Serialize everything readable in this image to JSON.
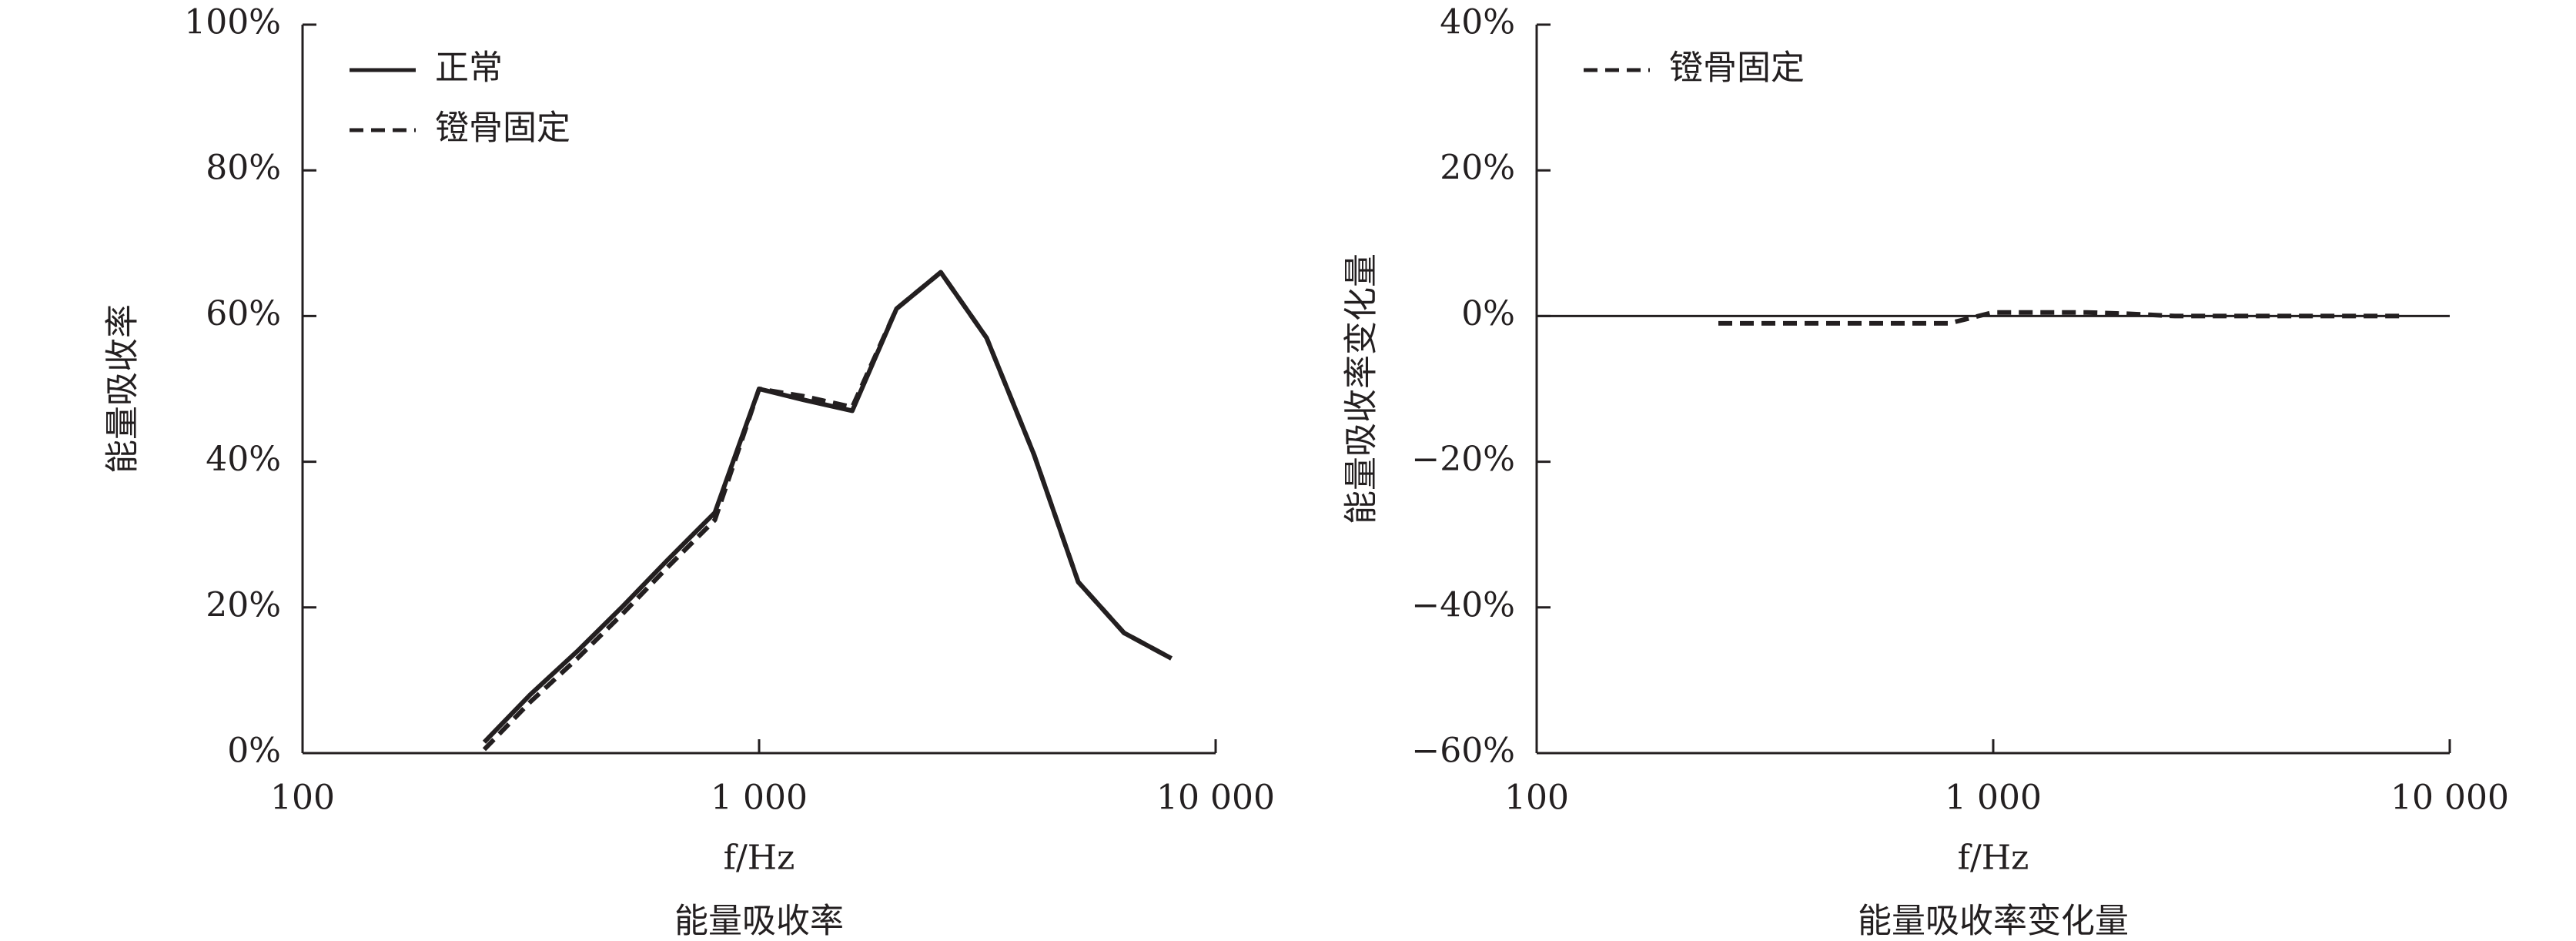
{
  "chart_data": [
    {
      "type": "line",
      "title": "能量吸收率",
      "xlabel": "f/Hz",
      "ylabel": "能量吸收率",
      "xscale": "log",
      "legend": "upper left",
      "x": [
        250,
        315,
        400,
        500,
        630,
        800,
        1000,
        1250,
        1600,
        2000,
        2500,
        3150,
        4000,
        5000,
        6300,
        8000
      ],
      "xlim": [
        100,
        10000
      ],
      "xticks": [
        100,
        {
          "value": 1000,
          "label": "1 000"
        },
        {
          "value": 10000,
          "label": "10 000"
        }
      ],
      "ylim": [
        0,
        100
      ],
      "yticks": [
        {
          "value": 0,
          "label": "0%"
        },
        {
          "value": 20,
          "label": "20%"
        },
        {
          "value": 40,
          "label": "40%"
        },
        {
          "value": 60,
          "label": "60%"
        },
        {
          "value": 80,
          "label": "80%"
        },
        {
          "value": 100,
          "label": "100%"
        }
      ],
      "series": [
        {
          "name": "正常",
          "color": "#231f20",
          "linestyle": "solid",
          "values": [
            1.5,
            8,
            14,
            20,
            26.5,
            33,
            50,
            48.5,
            47,
            61,
            66,
            57,
            41,
            23.5,
            16.5,
            13
          ]
        },
        {
          "name": "镫骨固定",
          "color": "#231f20",
          "linestyle": "dashed",
          "values": [
            0.5,
            7,
            13,
            19,
            25.5,
            32,
            50,
            49,
            47.5,
            61,
            66,
            57,
            41,
            23.5,
            16.5,
            13
          ]
        }
      ]
    },
    {
      "type": "line",
      "title": "能量吸收率变化量",
      "xlabel": "f/Hz",
      "ylabel": "能量吸收率变化量",
      "xscale": "log",
      "legend": "upper left",
      "zero_line": true,
      "x": [
        250,
        315,
        400,
        500,
        630,
        800,
        1000,
        1250,
        1600,
        2000,
        2500,
        3150,
        4000,
        5000,
        6300,
        8000
      ],
      "xlim": [
        100,
        10000
      ],
      "xticks": [
        100,
        {
          "value": 1000,
          "label": "1 000"
        },
        {
          "value": 10000,
          "label": "10 000"
        }
      ],
      "ylim": [
        -60,
        40
      ],
      "yticks": [
        {
          "value": -60,
          "label": "−60%"
        },
        {
          "value": -40,
          "label": "−40%"
        },
        {
          "value": -20,
          "label": "−20%"
        },
        {
          "value": 0,
          "label": "0%"
        },
        {
          "value": 20,
          "label": "20%"
        },
        {
          "value": 40,
          "label": "40%"
        }
      ],
      "series": [
        {
          "name": "镫骨固定",
          "color": "#231f20",
          "linestyle": "dashed",
          "values": [
            -1,
            -1,
            -1,
            -1,
            -1,
            -1,
            0.5,
            0.5,
            0.5,
            0.3,
            0,
            0,
            0,
            0,
            0,
            0
          ]
        }
      ]
    }
  ]
}
